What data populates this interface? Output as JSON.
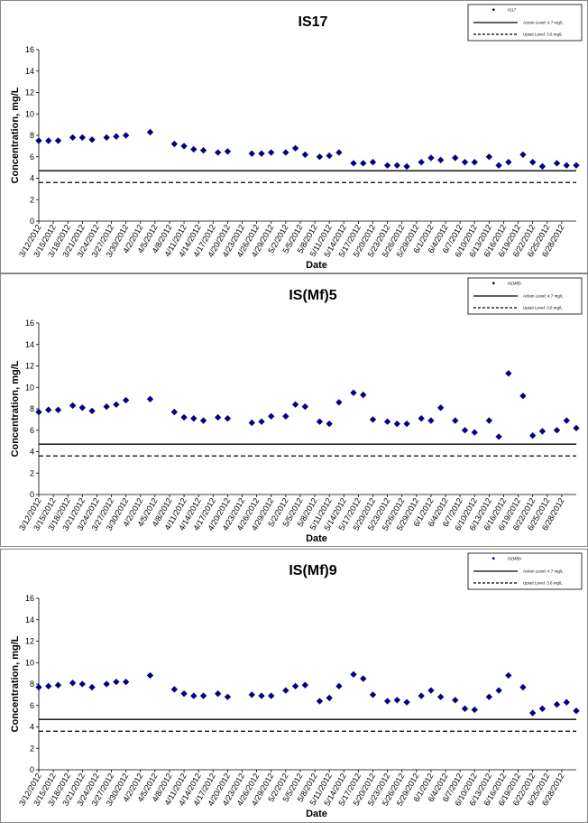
{
  "chart_data": [
    {
      "type": "scatter",
      "title": "IS17",
      "xlabel": "Date",
      "ylabel": "Concentration, mg/L",
      "ylim": [
        0,
        16
      ],
      "yticks": [
        "0",
        "2",
        "4",
        "6",
        "8",
        "10",
        "12",
        "14",
        "16"
      ],
      "xlim": [
        "3/12/2012",
        "7/1/2012"
      ],
      "xticks": [
        "3/12/2012",
        "3/15/2012",
        "3/18/2012",
        "3/21/2012",
        "3/24/2012",
        "3/27/2012",
        "3/30/2012",
        "4/2/2012",
        "4/5/2012",
        "4/8/2012",
        "4/11/2012",
        "4/14/2012",
        "4/17/2012",
        "4/20/2012",
        "4/23/2012",
        "4/26/2012",
        "4/29/2012",
        "5/2/2012",
        "5/5/2012",
        "5/8/2012",
        "5/11/2012",
        "5/14/2012",
        "5/17/2012",
        "5/20/2012",
        "5/23/2012",
        "5/26/2012",
        "5/29/2012",
        "6/1/2012",
        "6/4/2012",
        "6/7/2012",
        "6/10/2012",
        "6/13/2012",
        "6/16/2012",
        "6/19/2012",
        "6/22/2012",
        "6/25/2012",
        "6/28/2012"
      ],
      "legend_position": "top-right",
      "legend": [
        "IS17",
        "Action Level: 4.7 mg/L",
        "Upset Level: 3.6 mg/L"
      ],
      "lines": [
        {
          "label": "Action Level: 4.7 mg/L",
          "value": 4.7,
          "style": "solid"
        },
        {
          "label": "Upset Level: 3.6 mg/L",
          "value": 3.6,
          "style": "dashed"
        }
      ],
      "marker_color": "#000080",
      "points": [
        [
          "3/12/2012",
          7.5
        ],
        [
          "3/14/2012",
          7.5
        ],
        [
          "3/16/2012",
          7.5
        ],
        [
          "3/19/2012",
          7.8
        ],
        [
          "3/21/2012",
          7.8
        ],
        [
          "3/23/2012",
          7.6
        ],
        [
          "3/26/2012",
          7.8
        ],
        [
          "3/28/2012",
          7.9
        ],
        [
          "3/30/2012",
          8.0
        ],
        [
          "4/4/2012",
          8.3
        ],
        [
          "4/9/2012",
          7.2
        ],
        [
          "4/11/2012",
          7.0
        ],
        [
          "4/13/2012",
          6.7
        ],
        [
          "4/15/2012",
          6.6
        ],
        [
          "4/18/2012",
          6.4
        ],
        [
          "4/20/2012",
          6.5
        ],
        [
          "4/25/2012",
          6.3
        ],
        [
          "4/27/2012",
          6.3
        ],
        [
          "4/29/2012",
          6.4
        ],
        [
          "5/2/2012",
          6.4
        ],
        [
          "5/4/2012",
          6.8
        ],
        [
          "5/6/2012",
          6.2
        ],
        [
          "5/9/2012",
          6.0
        ],
        [
          "5/11/2012",
          6.1
        ],
        [
          "5/13/2012",
          6.4
        ],
        [
          "5/16/2012",
          5.4
        ],
        [
          "5/18/2012",
          5.4
        ],
        [
          "5/20/2012",
          5.5
        ],
        [
          "5/23/2012",
          5.2
        ],
        [
          "5/25/2012",
          5.2
        ],
        [
          "5/27/2012",
          5.1
        ],
        [
          "5/30/2012",
          5.5
        ],
        [
          "6/1/2012",
          5.9
        ],
        [
          "6/3/2012",
          5.7
        ],
        [
          "6/6/2012",
          5.9
        ],
        [
          "6/8/2012",
          5.5
        ],
        [
          "6/10/2012",
          5.5
        ],
        [
          "6/13/2012",
          6.0
        ],
        [
          "6/15/2012",
          5.2
        ],
        [
          "6/17/2012",
          5.5
        ],
        [
          "6/20/2012",
          6.2
        ],
        [
          "6/22/2012",
          5.5
        ],
        [
          "6/24/2012",
          5.1
        ],
        [
          "6/27/2012",
          5.4
        ],
        [
          "6/29/2012",
          5.2
        ],
        [
          "7/1/2012",
          5.2
        ]
      ]
    },
    {
      "type": "scatter",
      "title": "IS(Mf)5",
      "xlabel": "Date",
      "ylabel": "Concentration, mg/L",
      "ylim": [
        0,
        16
      ],
      "yticks": [
        "0",
        "2",
        "4",
        "6",
        "8",
        "10",
        "12",
        "14",
        "16"
      ],
      "xlim": [
        "3/12/2012",
        "7/1/2012"
      ],
      "xticks": [
        "3/12/2012",
        "3/15/2012",
        "3/18/2012",
        "3/21/2012",
        "3/24/2012",
        "3/27/2012",
        "3/30/2012",
        "4/2/2012",
        "4/5/2012",
        "4/8/2012",
        "4/11/2012",
        "4/14/2012",
        "4/17/2012",
        "4/20/2012",
        "4/23/2012",
        "4/26/2012",
        "4/29/2012",
        "5/2/2012",
        "5/5/2012",
        "5/8/2012",
        "5/11/2012",
        "5/14/2012",
        "5/17/2012",
        "5/20/2012",
        "5/23/2012",
        "5/26/2012",
        "5/29/2012",
        "6/1/2012",
        "6/4/2012",
        "6/7/2012",
        "6/10/2012",
        "6/13/2012",
        "6/16/2012",
        "6/19/2012",
        "6/22/2012",
        "6/25/2012",
        "6/28/2012"
      ],
      "legend_position": "top-right",
      "legend": [
        "IS(Mf)5",
        "Action Level: 4.7 mg/L",
        "Upset Level: 3.6 mg/L"
      ],
      "lines": [
        {
          "label": "Action Level: 4.7 mg/L",
          "value": 4.7,
          "style": "solid"
        },
        {
          "label": "Upset Level: 3.6 mg/L",
          "value": 3.6,
          "style": "dashed"
        }
      ],
      "marker_color": "#000080",
      "points": [
        [
          "3/12/2012",
          7.7
        ],
        [
          "3/14/2012",
          7.9
        ],
        [
          "3/16/2012",
          7.9
        ],
        [
          "3/19/2012",
          8.3
        ],
        [
          "3/21/2012",
          8.1
        ],
        [
          "3/23/2012",
          7.8
        ],
        [
          "3/26/2012",
          8.2
        ],
        [
          "3/28/2012",
          8.4
        ],
        [
          "3/30/2012",
          8.8
        ],
        [
          "4/4/2012",
          8.9
        ],
        [
          "4/9/2012",
          7.7
        ],
        [
          "4/11/2012",
          7.2
        ],
        [
          "4/13/2012",
          7.1
        ],
        [
          "4/15/2012",
          6.9
        ],
        [
          "4/18/2012",
          7.2
        ],
        [
          "4/20/2012",
          7.1
        ],
        [
          "4/25/2012",
          6.7
        ],
        [
          "4/27/2012",
          6.8
        ],
        [
          "4/29/2012",
          7.3
        ],
        [
          "5/2/2012",
          7.3
        ],
        [
          "5/4/2012",
          8.4
        ],
        [
          "5/6/2012",
          8.2
        ],
        [
          "5/9/2012",
          6.8
        ],
        [
          "5/11/2012",
          6.6
        ],
        [
          "5/13/2012",
          8.6
        ],
        [
          "5/16/2012",
          9.5
        ],
        [
          "5/18/2012",
          9.3
        ],
        [
          "5/20/2012",
          7.0
        ],
        [
          "5/23/2012",
          6.8
        ],
        [
          "5/25/2012",
          6.6
        ],
        [
          "5/27/2012",
          6.6
        ],
        [
          "5/30/2012",
          7.1
        ],
        [
          "6/1/2012",
          6.9
        ],
        [
          "6/3/2012",
          8.1
        ],
        [
          "6/6/2012",
          6.9
        ],
        [
          "6/8/2012",
          6.0
        ],
        [
          "6/10/2012",
          5.8
        ],
        [
          "6/13/2012",
          6.9
        ],
        [
          "6/15/2012",
          5.4
        ],
        [
          "6/17/2012",
          11.3
        ],
        [
          "6/20/2012",
          9.2
        ],
        [
          "6/22/2012",
          5.5
        ],
        [
          "6/24/2012",
          5.9
        ],
        [
          "6/27/2012",
          6.0
        ],
        [
          "6/29/2012",
          6.9
        ],
        [
          "7/1/2012",
          6.2
        ]
      ]
    },
    {
      "type": "scatter",
      "title": "IS(Mf)9",
      "xlabel": "Date",
      "ylabel": "Concentration, mg/L",
      "ylim": [
        0,
        16
      ],
      "yticks": [
        "0",
        "2",
        "4",
        "6",
        "8",
        "10",
        "12",
        "14",
        "16"
      ],
      "xlim": [
        "3/12/2012",
        "7/1/2012"
      ],
      "xticks": [
        "3/12/2012",
        "3/15/2012",
        "3/18/2012",
        "3/21/2012",
        "3/24/2012",
        "3/27/2012",
        "3/30/2012",
        "4/2/2012",
        "4/5/2012",
        "4/8/2012",
        "4/11/2012",
        "4/14/2012",
        "4/17/2012",
        "4/20/2012",
        "4/23/2012",
        "4/26/2012",
        "4/29/2012",
        "5/2/2012",
        "5/5/2012",
        "5/8/2012",
        "5/11/2012",
        "5/14/2012",
        "5/17/2012",
        "5/20/2012",
        "5/23/2012",
        "5/26/2012",
        "5/29/2012",
        "6/1/2012",
        "6/4/2012",
        "6/7/2012",
        "6/10/2012",
        "6/13/2012",
        "6/16/2012",
        "6/19/2012",
        "6/22/2012",
        "6/25/2012",
        "6/28/2012"
      ],
      "legend_position": "top-right",
      "legend": [
        "IS(Mf)9",
        "Action Level: 4.7 mg/L",
        "Upset Level: 3.6 mg/L"
      ],
      "lines": [
        {
          "label": "Action Level: 4.7 mg/L",
          "value": 4.7,
          "style": "solid"
        },
        {
          "label": "Upset Level: 3.6 mg/L",
          "value": 3.6,
          "style": "dashed"
        }
      ],
      "marker_color": "#000080",
      "points": [
        [
          "3/12/2012",
          7.7
        ],
        [
          "3/14/2012",
          7.8
        ],
        [
          "3/16/2012",
          7.9
        ],
        [
          "3/19/2012",
          8.1
        ],
        [
          "3/21/2012",
          8.0
        ],
        [
          "3/23/2012",
          7.7
        ],
        [
          "3/26/2012",
          8.0
        ],
        [
          "3/28/2012",
          8.2
        ],
        [
          "3/30/2012",
          8.2
        ],
        [
          "4/4/2012",
          8.8
        ],
        [
          "4/9/2012",
          7.5
        ],
        [
          "4/11/2012",
          7.1
        ],
        [
          "4/13/2012",
          6.9
        ],
        [
          "4/15/2012",
          6.9
        ],
        [
          "4/18/2012",
          7.1
        ],
        [
          "4/20/2012",
          6.8
        ],
        [
          "4/25/2012",
          7.0
        ],
        [
          "4/27/2012",
          6.9
        ],
        [
          "4/29/2012",
          6.9
        ],
        [
          "5/2/2012",
          7.4
        ],
        [
          "5/4/2012",
          7.8
        ],
        [
          "5/6/2012",
          7.9
        ],
        [
          "5/9/2012",
          6.4
        ],
        [
          "5/11/2012",
          6.7
        ],
        [
          "5/13/2012",
          7.8
        ],
        [
          "5/16/2012",
          8.9
        ],
        [
          "5/18/2012",
          8.5
        ],
        [
          "5/20/2012",
          7.0
        ],
        [
          "5/23/2012",
          6.4
        ],
        [
          "5/25/2012",
          6.5
        ],
        [
          "5/27/2012",
          6.3
        ],
        [
          "5/30/2012",
          6.9
        ],
        [
          "6/1/2012",
          7.4
        ],
        [
          "6/3/2012",
          6.8
        ],
        [
          "6/6/2012",
          6.5
        ],
        [
          "6/8/2012",
          5.7
        ],
        [
          "6/10/2012",
          5.6
        ],
        [
          "6/13/2012",
          6.8
        ],
        [
          "6/15/2012",
          7.4
        ],
        [
          "6/17/2012",
          8.8
        ],
        [
          "6/20/2012",
          7.7
        ],
        [
          "6/22/2012",
          5.3
        ],
        [
          "6/24/2012",
          5.7
        ],
        [
          "6/27/2012",
          6.1
        ],
        [
          "6/29/2012",
          6.3
        ],
        [
          "7/1/2012",
          5.5
        ]
      ]
    }
  ]
}
